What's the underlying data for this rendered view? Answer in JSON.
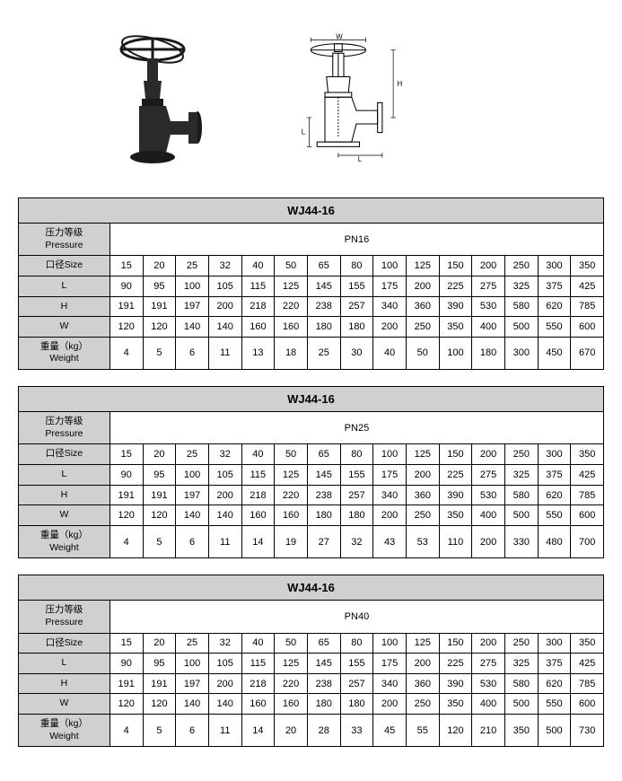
{
  "diagram": {
    "dim_w": "W",
    "dim_h": "H",
    "dim_l1": "L",
    "dim_l2": "L"
  },
  "tables": [
    {
      "title": "WJ44-16",
      "pressure_label_cn": "压力等级",
      "pressure_label_en": "Pressure",
      "pressure_value": "PN16",
      "size_label": "口径Size",
      "sizes": [
        "15",
        "20",
        "25",
        "32",
        "40",
        "50",
        "65",
        "80",
        "100",
        "125",
        "150",
        "200",
        "250",
        "300",
        "350"
      ],
      "rows": [
        {
          "label": "L",
          "values": [
            "90",
            "95",
            "100",
            "105",
            "115",
            "125",
            "145",
            "155",
            "175",
            "200",
            "225",
            "275",
            "325",
            "375",
            "425"
          ]
        },
        {
          "label": "H",
          "values": [
            "191",
            "191",
            "197",
            "200",
            "218",
            "220",
            "238",
            "257",
            "340",
            "360",
            "390",
            "530",
            "580",
            "620",
            "785"
          ]
        },
        {
          "label": "W",
          "values": [
            "120",
            "120",
            "140",
            "140",
            "160",
            "160",
            "180",
            "180",
            "200",
            "250",
            "350",
            "400",
            "500",
            "550",
            "600"
          ]
        },
        {
          "label_cn": "重量（kg）",
          "label_en": "Weight",
          "values": [
            "4",
            "5",
            "6",
            "11",
            "13",
            "18",
            "25",
            "30",
            "40",
            "50",
            "100",
            "180",
            "300",
            "450",
            "670"
          ]
        }
      ]
    },
    {
      "title": "WJ44-16",
      "pressure_label_cn": "压力等级",
      "pressure_label_en": "Pressure",
      "pressure_value": "PN25",
      "size_label": "口径Size",
      "sizes": [
        "15",
        "20",
        "25",
        "32",
        "40",
        "50",
        "65",
        "80",
        "100",
        "125",
        "150",
        "200",
        "250",
        "300",
        "350"
      ],
      "rows": [
        {
          "label": "L",
          "values": [
            "90",
            "95",
            "100",
            "105",
            "115",
            "125",
            "145",
            "155",
            "175",
            "200",
            "225",
            "275",
            "325",
            "375",
            "425"
          ]
        },
        {
          "label": "H",
          "values": [
            "191",
            "191",
            "197",
            "200",
            "218",
            "220",
            "238",
            "257",
            "340",
            "360",
            "390",
            "530",
            "580",
            "620",
            "785"
          ]
        },
        {
          "label": "W",
          "values": [
            "120",
            "120",
            "140",
            "140",
            "160",
            "160",
            "180",
            "180",
            "200",
            "250",
            "350",
            "400",
            "500",
            "550",
            "600"
          ]
        },
        {
          "label_cn": "重量（kg）",
          "label_en": "Weight",
          "values": [
            "4",
            "5",
            "6",
            "11",
            "14",
            "19",
            "27",
            "32",
            "43",
            "53",
            "110",
            "200",
            "330",
            "480",
            "700"
          ]
        }
      ]
    },
    {
      "title": "WJ44-16",
      "pressure_label_cn": "压力等级",
      "pressure_label_en": "Pressure",
      "pressure_value": "PN40",
      "size_label": "口径Size",
      "sizes": [
        "15",
        "20",
        "25",
        "32",
        "40",
        "50",
        "65",
        "80",
        "100",
        "125",
        "150",
        "200",
        "250",
        "300",
        "350"
      ],
      "rows": [
        {
          "label": "L",
          "values": [
            "90",
            "95",
            "100",
            "105",
            "115",
            "125",
            "145",
            "155",
            "175",
            "200",
            "225",
            "275",
            "325",
            "375",
            "425"
          ]
        },
        {
          "label": "H",
          "values": [
            "191",
            "191",
            "197",
            "200",
            "218",
            "220",
            "238",
            "257",
            "340",
            "360",
            "390",
            "530",
            "580",
            "620",
            "785"
          ]
        },
        {
          "label": "W",
          "values": [
            "120",
            "120",
            "140",
            "140",
            "160",
            "160",
            "180",
            "180",
            "200",
            "250",
            "350",
            "400",
            "500",
            "550",
            "600"
          ]
        },
        {
          "label_cn": "重量（kg）",
          "label_en": "Weight",
          "values": [
            "4",
            "5",
            "6",
            "11",
            "14",
            "20",
            "28",
            "33",
            "45",
            "55",
            "120",
            "210",
            "350",
            "500",
            "730"
          ]
        }
      ]
    }
  ]
}
